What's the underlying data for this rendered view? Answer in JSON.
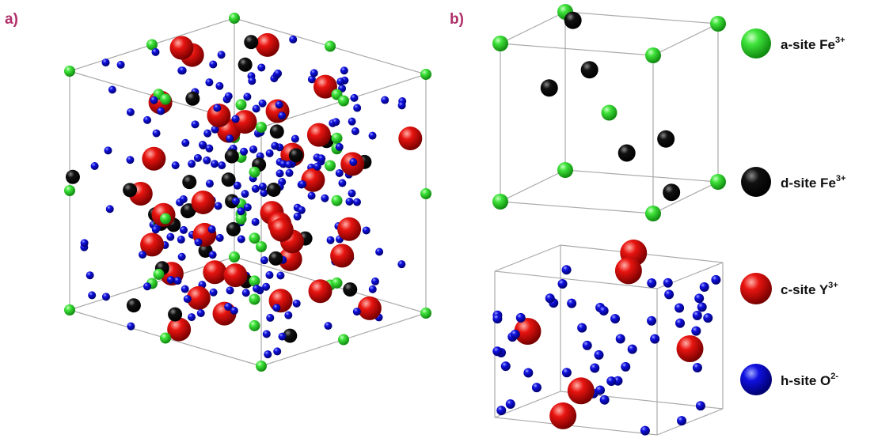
{
  "panels": [
    {
      "label": "a)"
    },
    {
      "label": "b)"
    }
  ],
  "legend": [
    {
      "label": "a-site Fe",
      "superscript": "3+"
    },
    {
      "label": "d-site Fe",
      "superscript": "3+"
    },
    {
      "label": "c-site Y",
      "superscript": "3+"
    },
    {
      "label": "h-site O",
      "superscript": "2-"
    }
  ]
}
